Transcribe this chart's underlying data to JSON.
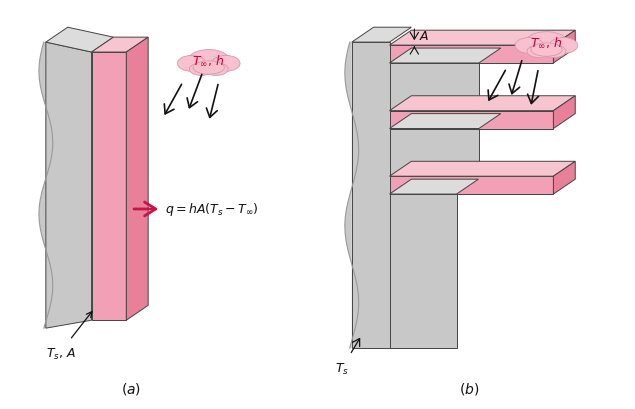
{
  "bg_color": "#ffffff",
  "pink_face": "#f2a0b5",
  "pink_top": "#f7c5d0",
  "pink_side": "#e8809a",
  "gray_wall": "#c8c8c8",
  "gray_top": "#dcdcdc",
  "cloud_color": "#f9c0d0",
  "arrow_color": "#111111",
  "q_arrow_color": "#cc1144",
  "text_color": "#111111",
  "figsize": [
    6.35,
    4.1
  ],
  "dpi": 100
}
